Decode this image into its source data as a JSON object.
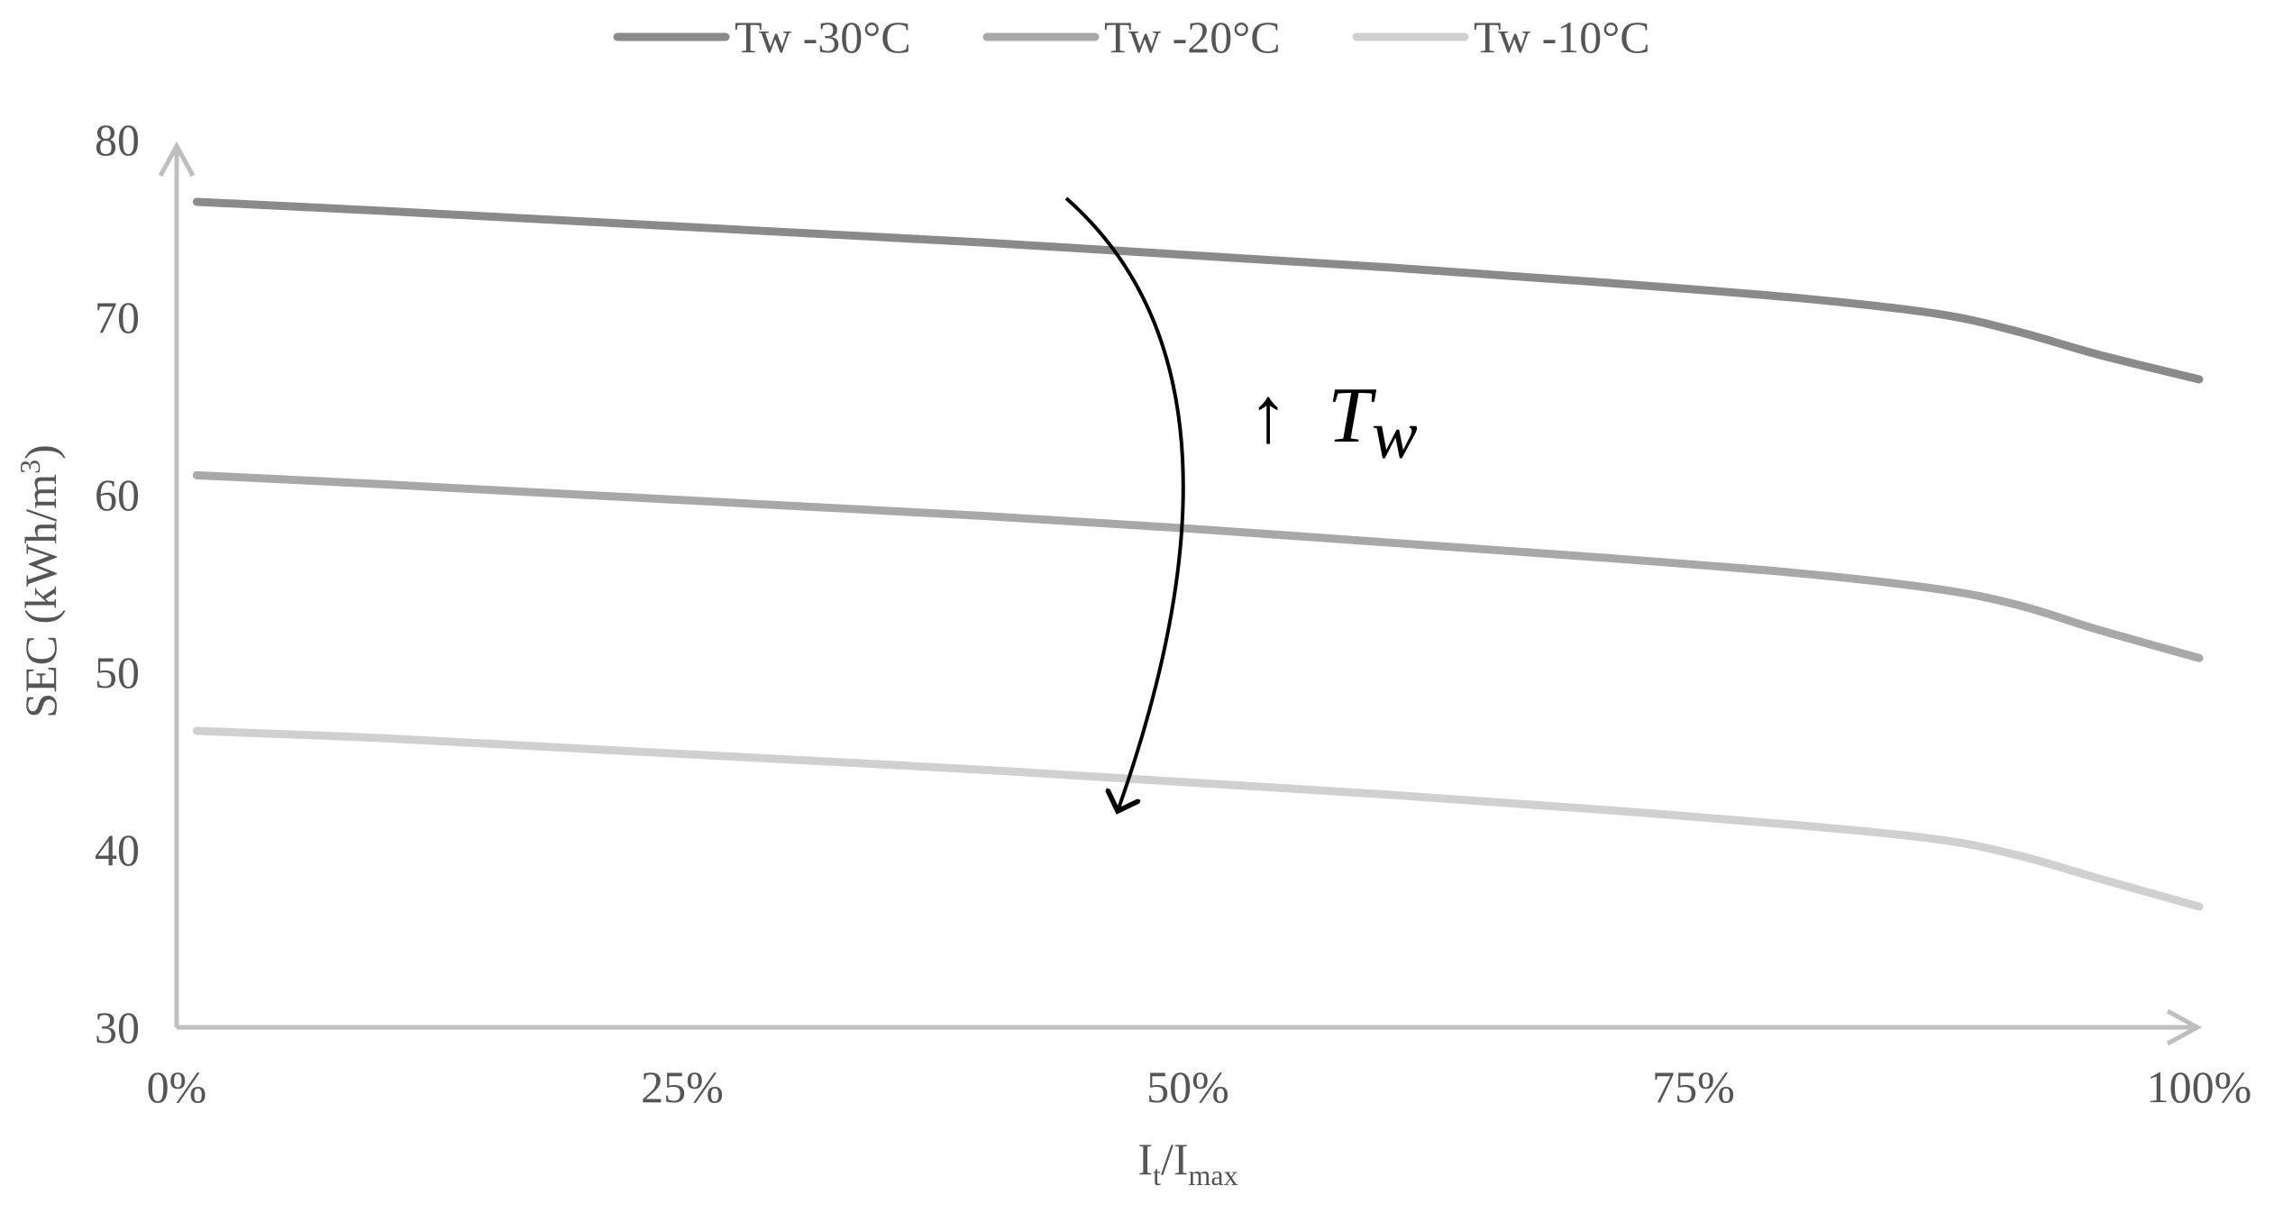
{
  "chart_data": {
    "type": "line",
    "title": "",
    "xlabel": "It/Imax",
    "ylabel": "SEC (kWh/m3)",
    "x_ticks": [
      "0%",
      "25%",
      "50%",
      "75%",
      "100%"
    ],
    "y_ticks": [
      "30",
      "40",
      "50",
      "60",
      "70",
      "80"
    ],
    "xlim": [
      0,
      1
    ],
    "ylim": [
      30,
      80
    ],
    "grid": false,
    "legend_position": "top",
    "x": [
      0.01,
      0.1,
      0.2,
      0.3,
      0.4,
      0.5,
      0.6,
      0.7,
      0.8,
      0.87,
      0.91,
      0.95,
      1.0
    ],
    "series": [
      {
        "name": "Tw -30°C",
        "color": "#8a8a8a",
        "values": [
          76.5,
          76.0,
          75.4,
          74.8,
          74.2,
          73.5,
          72.8,
          72.0,
          71.1,
          70.2,
          69.2,
          67.9,
          66.5
        ]
      },
      {
        "name": "Tw -20°C",
        "color": "#a8a8a8",
        "values": [
          61.1,
          60.6,
          60.0,
          59.4,
          58.8,
          58.1,
          57.3,
          56.5,
          55.6,
          54.7,
          53.8,
          52.4,
          50.8
        ]
      },
      {
        "name": "Tw -10°C",
        "color": "#d0d0d0",
        "values": [
          46.7,
          46.3,
          45.7,
          45.1,
          44.5,
          43.8,
          43.1,
          42.3,
          41.4,
          40.6,
          39.7,
          38.4,
          36.8
        ]
      }
    ],
    "annotation": {
      "arrow_label": "↑",
      "label_main": "T",
      "label_sub": "w"
    }
  }
}
